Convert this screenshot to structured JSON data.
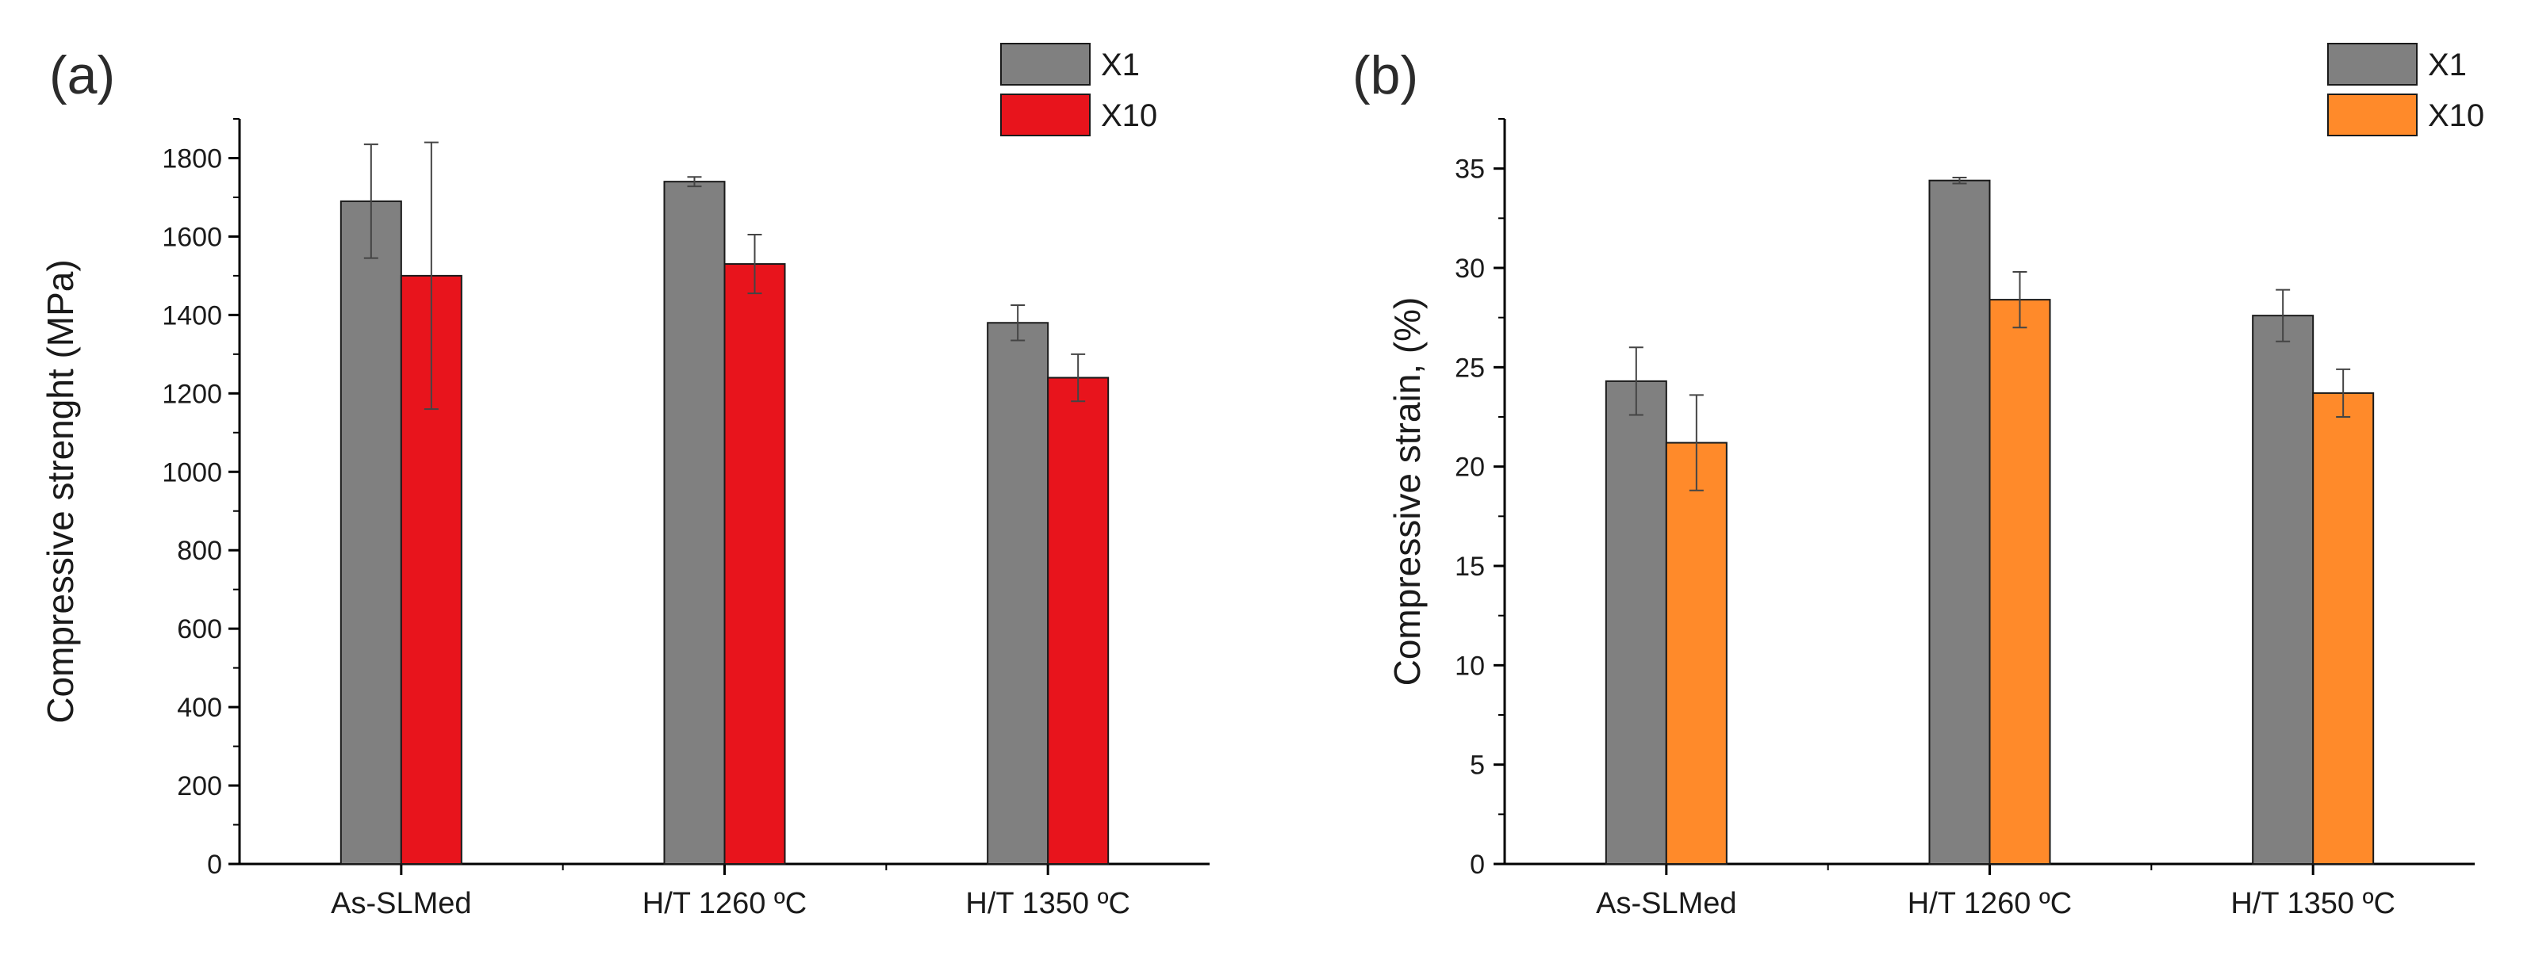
{
  "chart_data": [
    {
      "panel_label": "(a)",
      "type": "bar",
      "categories": [
        "As-SLMed",
        "H/T 1260 ºC",
        "H/T 1350 ºC"
      ],
      "series": [
        {
          "name": "X1",
          "color": "#808080",
          "values": [
            1690,
            1740,
            1380
          ],
          "errors": [
            145,
            12,
            45
          ]
        },
        {
          "name": "X10",
          "color": "#e8141c",
          "values": [
            1500,
            1530,
            1240
          ],
          "errors": [
            340,
            75,
            60
          ]
        }
      ],
      "xlabel": "",
      "ylabel": "Compressive strenght (MPa)",
      "ylim": [
        0,
        1900
      ],
      "yticks": [
        0,
        200,
        400,
        600,
        800,
        1000,
        1200,
        1400,
        1600,
        1800
      ],
      "legend_position": "top-right",
      "grid": false
    },
    {
      "panel_label": "(b)",
      "type": "bar",
      "categories": [
        "As-SLMed",
        "H/T 1260 ºC",
        "H/T 1350 ºC"
      ],
      "series": [
        {
          "name": "X1",
          "color": "#808080",
          "values": [
            24.3,
            34.4,
            27.6
          ],
          "errors": [
            1.7,
            0.15,
            1.3
          ]
        },
        {
          "name": "X10",
          "color": "#ff8a2a",
          "values": [
            21.2,
            28.4,
            23.7
          ],
          "errors": [
            2.4,
            1.4,
            1.2
          ]
        }
      ],
      "xlabel": "",
      "ylabel": "Compressive strain, (%)",
      "ylim": [
        0,
        37.5
      ],
      "yticks": [
        0,
        5,
        10,
        15,
        20,
        25,
        30,
        35
      ],
      "legend_position": "top-right",
      "grid": false
    }
  ]
}
